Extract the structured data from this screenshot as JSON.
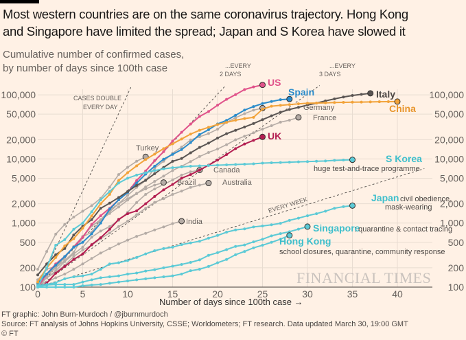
{
  "header": {
    "title_line1": "Most western countries are on the same coronavirus trajectory. Hong Kong",
    "title_line2": "and Singapore have limited the spread; Japan and S Korea have slowed it",
    "subtitle_line1": "Cumulative number of confirmed cases,",
    "subtitle_line2": "by number of days since 100th case"
  },
  "footer": {
    "xaxis_label": "Number of days since 100th case →",
    "credit": "FT graphic: John Burn-Murdoch / @jburnmurdoch",
    "source": "Source: FT analysis of Johns Hopkins University, CSSE; Worldometers; FT research. Data updated March 30, 19:00 GMT",
    "copyright": "© FT",
    "watermark": "FINANCIAL TIMES"
  },
  "chart_data": {
    "type": "line",
    "title": "Most western countries are on the same coronavirus trajectory. Hong Kong and Singapore have limited the spread; Japan and S Korea have slowed it",
    "subtitle": "Cumulative number of confirmed cases, by number of days since 100th case",
    "xlabel": "Number of days since 100th case",
    "ylabel": "Cumulative number of confirmed cases",
    "yscale": "log",
    "xlim": [
      0,
      44
    ],
    "ylim": [
      100,
      150000
    ],
    "x_ticks": [
      0,
      5,
      10,
      15,
      20,
      25,
      30,
      35,
      40
    ],
    "y_ticks": [
      100,
      200,
      500,
      1000,
      2000,
      5000,
      10000,
      20000,
      50000,
      100000
    ],
    "y_tick_labels": [
      "100",
      "200",
      "500",
      "1,000",
      "2,000",
      "5,000",
      "10,000",
      "20,000",
      "50,000",
      "100,000"
    ],
    "grid": true,
    "legend": "direct-labels",
    "reference_lines": [
      {
        "label": "CASES DOUBLE EVERY DAY",
        "doubling_days": 1
      },
      {
        "label": "...EVERY 2 DAYS",
        "doubling_days": 2
      },
      {
        "label": "...EVERY 3 DAYS",
        "doubling_days": 3
      },
      {
        "label": "...EVERY WEEK",
        "doubling_days": 7
      }
    ],
    "series": [
      {
        "name": "US",
        "color": "#e0528a",
        "highlight": true,
        "values": [
          100,
          160,
          230,
          300,
          420,
          600,
          950,
          1300,
          1700,
          2300,
          3000,
          4600,
          6500,
          9400,
          13000,
          19000,
          26000,
          35000,
          46000,
          55000,
          69000,
          85000,
          101000,
          121000,
          133000,
          143000
        ]
      },
      {
        "name": "Spain",
        "color": "#2b8ccb",
        "highlight": true,
        "values": [
          115,
          160,
          220,
          300,
          420,
          500,
          680,
          1000,
          1650,
          2300,
          3000,
          4200,
          5800,
          7700,
          9900,
          11800,
          14000,
          18000,
          24000,
          28600,
          35100,
          40000,
          48000,
          57800,
          65700,
          73200,
          78800,
          84000,
          86000
        ]
      },
      {
        "name": "Italy",
        "color": "#5a5553",
        "highlight": true,
        "values": [
          155,
          230,
          320,
          400,
          650,
          890,
          1130,
          1700,
          2040,
          2500,
          3100,
          3860,
          4640,
          5880,
          7380,
          9170,
          10150,
          12460,
          15110,
          17660,
          21160,
          24750,
          27980,
          31500,
          35710,
          41040,
          47020,
          53580,
          59140,
          63930,
          69180,
          74390,
          80590,
          86500,
          92470,
          97690,
          101740,
          105790
        ]
      },
      {
        "name": "China",
        "color": "#f2a33a",
        "highlight": true,
        "values": [
          120,
          200,
          290,
          440,
          570,
          830,
          1290,
          2000,
          2800,
          4600,
          6100,
          7800,
          9800,
          11900,
          14500,
          17200,
          20500,
          24400,
          28000,
          31200,
          34500,
          37200,
          40200,
          42700,
          44600,
          59800,
          66500,
          68600,
          70500,
          72400,
          74100,
          74600,
          75100,
          75900,
          76300,
          76800,
          77200,
          77700,
          78100,
          78300,
          78500
        ]
      },
      {
        "name": "UK",
        "color": "#b31e51",
        "highlight": true,
        "values": [
          100,
          115,
          165,
          210,
          270,
          330,
          460,
          590,
          800,
          1140,
          1400,
          1550,
          2000,
          2600,
          3300,
          4000,
          5000,
          5700,
          6700,
          8000,
          9600,
          11700,
          14500,
          17100,
          19500,
          22100
        ]
      },
      {
        "name": "S Korea",
        "color": "#5ccad6",
        "highlight": true,
        "annotation": "huge test-and-trace programme",
        "values": [
          100,
          200,
          450,
          550,
          800,
          1000,
          1500,
          2300,
          3100,
          4200,
          5000,
          5600,
          6100,
          6600,
          7000,
          7300,
          7500,
          7700,
          7800,
          7900,
          8000,
          8100,
          8200,
          8300,
          8400,
          8600,
          8700,
          8800,
          8900,
          9000,
          9100,
          9200,
          9300,
          9500,
          9600,
          9700
        ]
      },
      {
        "name": "Japan",
        "color": "#5ccad6",
        "highlight": true,
        "annotation": "civil obedience, mask-wearing",
        "values": [
          105,
          110,
          117,
          135,
          145,
          150,
          160,
          190,
          230,
          240,
          260,
          290,
          330,
          370,
          400,
          420,
          460,
          490,
          520,
          580,
          640,
          720,
          780,
          810,
          870,
          900,
          940,
          990,
          1100,
          1190,
          1300,
          1400,
          1530,
          1700,
          1800,
          1870
        ]
      },
      {
        "name": "Singapore",
        "color": "#5ccad6",
        "highlight": true,
        "annotation": "quarantine & contact tracing",
        "values": [
          102,
          108,
          110,
          110,
          110,
          120,
          130,
          140,
          145,
          150,
          160,
          166,
          178,
          187,
          200,
          212,
          226,
          243,
          266,
          313,
          345,
          385,
          432,
          455,
          509,
          558,
          631,
          683,
          732,
          802,
          879
        ]
      },
      {
        "name": "Hong Kong",
        "color": "#5ccad6",
        "highlight": true,
        "annotation": "school closures, quarantine, community response",
        "values": [
          100,
          100,
          100,
          100,
          100,
          105,
          108,
          110,
          115,
          120,
          125,
          130,
          135,
          140,
          145,
          150,
          160,
          180,
          190,
          210,
          240,
          270,
          320,
          360,
          410,
          450,
          500,
          560,
          641
        ]
      },
      {
        "name": "Turkey",
        "color": "#b5aca6",
        "highlight": false,
        "values": [
          190,
          360,
          670,
          950,
          1240,
          1530,
          1870,
          2430,
          3630,
          5700,
          7400,
          9200,
          10800
        ]
      },
      {
        "name": "Germany",
        "color": "#b5aca6",
        "highlight": false,
        "values": [
          130,
          160,
          200,
          260,
          350,
          600,
          900,
          1100,
          1500,
          2000,
          2700,
          3600,
          4600,
          7200,
          9200,
          12300,
          15300,
          19800,
          22200,
          24900,
          29100,
          37300,
          43900,
          50900,
          57700,
          62100
        ]
      },
      {
        "name": "France",
        "color": "#b5aca6",
        "highlight": false,
        "values": [
          130,
          190,
          210,
          290,
          420,
          610,
          720,
          1120,
          1410,
          1780,
          2280,
          2870,
          3660,
          4470,
          5400,
          6600,
          7700,
          9100,
          10900,
          12600,
          14300,
          16700,
          19900,
          22600,
          25600,
          29200,
          33000,
          37500,
          40200,
          44500
        ]
      },
      {
        "name": "Canada",
        "color": "#b5aca6",
        "highlight": false,
        "values": [
          100,
          140,
          180,
          250,
          330,
          420,
          600,
          750,
          880,
          1100,
          1470,
          2090,
          2800,
          3400,
          4000,
          4700,
          5600,
          6300,
          6700
        ]
      },
      {
        "name": "Brazil",
        "color": "#b5aca6",
        "highlight": false,
        "values": [
          120,
          150,
          200,
          290,
          430,
          620,
          900,
          1130,
          1600,
          2000,
          2400,
          2900,
          3400,
          3900,
          4300
        ]
      },
      {
        "name": "Australia",
        "color": "#b5aca6",
        "highlight": false,
        "values": [
          110,
          140,
          170,
          220,
          300,
          380,
          450,
          570,
          700,
          880,
          1070,
          1350,
          1700,
          2100,
          2400,
          2800,
          3150,
          3600,
          3900,
          4200
        ]
      },
      {
        "name": "India",
        "color": "#b5aca6",
        "highlight": false,
        "values": [
          110,
          120,
          140,
          160,
          190,
          230,
          280,
          340,
          400,
          470,
          540,
          620,
          690,
          780,
          870,
          980,
          1070
        ]
      }
    ],
    "labels": {
      "us": "US",
      "spain": "Spain",
      "italy": "Italy",
      "china": "China",
      "uk": "UK",
      "skorea": "S Korea",
      "japan": "Japan",
      "singapore": "Singapore",
      "hongkong": "Hong Kong",
      "turkey": "Turkey",
      "germany": "Germany",
      "france": "France",
      "canada": "Canada",
      "brazil": "Brazil",
      "australia": "Australia",
      "india": "India",
      "skorea_note": "huge test-and-trace programme",
      "japan_note1": "civil obedience,",
      "japan_note2": "mask-wearing",
      "singapore_note": ": quarantine & contact tracing",
      "hongkong_note": "school closures, quarantine, community response",
      "double_day1": "CASES DOUBLE",
      "double_day2": "EVERY DAY",
      "every2_1": "...EVERY",
      "every2_2": "2 DAYS",
      "every3_1": "...EVERY",
      "every3_2": "3 DAYS",
      "every_week": "EVERY WEEK"
    }
  }
}
